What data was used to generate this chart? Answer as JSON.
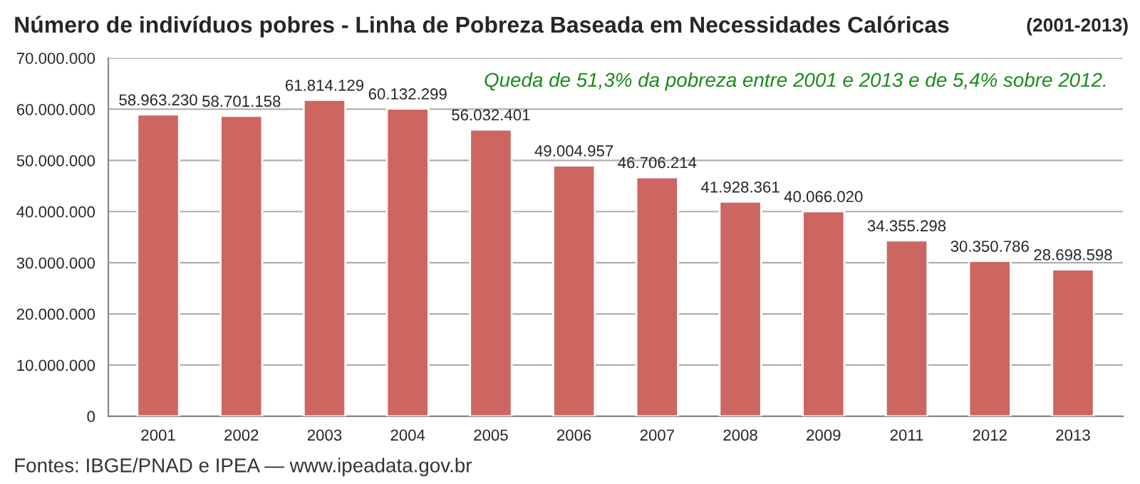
{
  "chart_data": {
    "type": "bar",
    "title": "Número de indivíduos pobres - Linha de Pobreza Baseada em Necessidades Calóricas",
    "subtitle": "(2001-2013)",
    "categories": [
      "2001",
      "2002",
      "2003",
      "2004",
      "2005",
      "2006",
      "2007",
      "2008",
      "2009",
      "2011",
      "2012",
      "2013"
    ],
    "values": [
      58963230,
      58701158,
      61814129,
      60132299,
      56032401,
      49004957,
      46706214,
      41928361,
      40066020,
      34355298,
      30350786,
      28698598
    ],
    "value_labels": [
      "58.963.230",
      "58.701.158",
      "61.814.129",
      "60.132.299",
      "56.032.401",
      "49.004.957",
      "46.706.214",
      "41.928.361",
      "40.066.020",
      "34.355.298",
      "30.350.786",
      "28.698.598"
    ],
    "color": "#cd6560",
    "ylim": [
      0,
      70000000
    ],
    "yticks": [
      0,
      {
        "value": 10000000,
        "label": "10.000.000"
      },
      {
        "value": 20000000,
        "label": "20.000.000"
      },
      {
        "value": 30000000,
        "label": "30.000.000"
      },
      {
        "value": 40000000,
        "label": "40.000.000"
      },
      {
        "value": 50000000,
        "label": "50.000.000"
      },
      {
        "value": 60000000,
        "label": "60.000.000"
      },
      {
        "value": 70000000,
        "label": "70.000.000"
      }
    ],
    "grid": "y",
    "legend": false,
    "annotations": [
      "Queda de 51,3% da pobreza entre 2001 e 2013 e de 5,4% sobre 2012.",
      "Fontes: IBGE/PNAD e IPEA — www.ipeadata.gov.br"
    ]
  }
}
